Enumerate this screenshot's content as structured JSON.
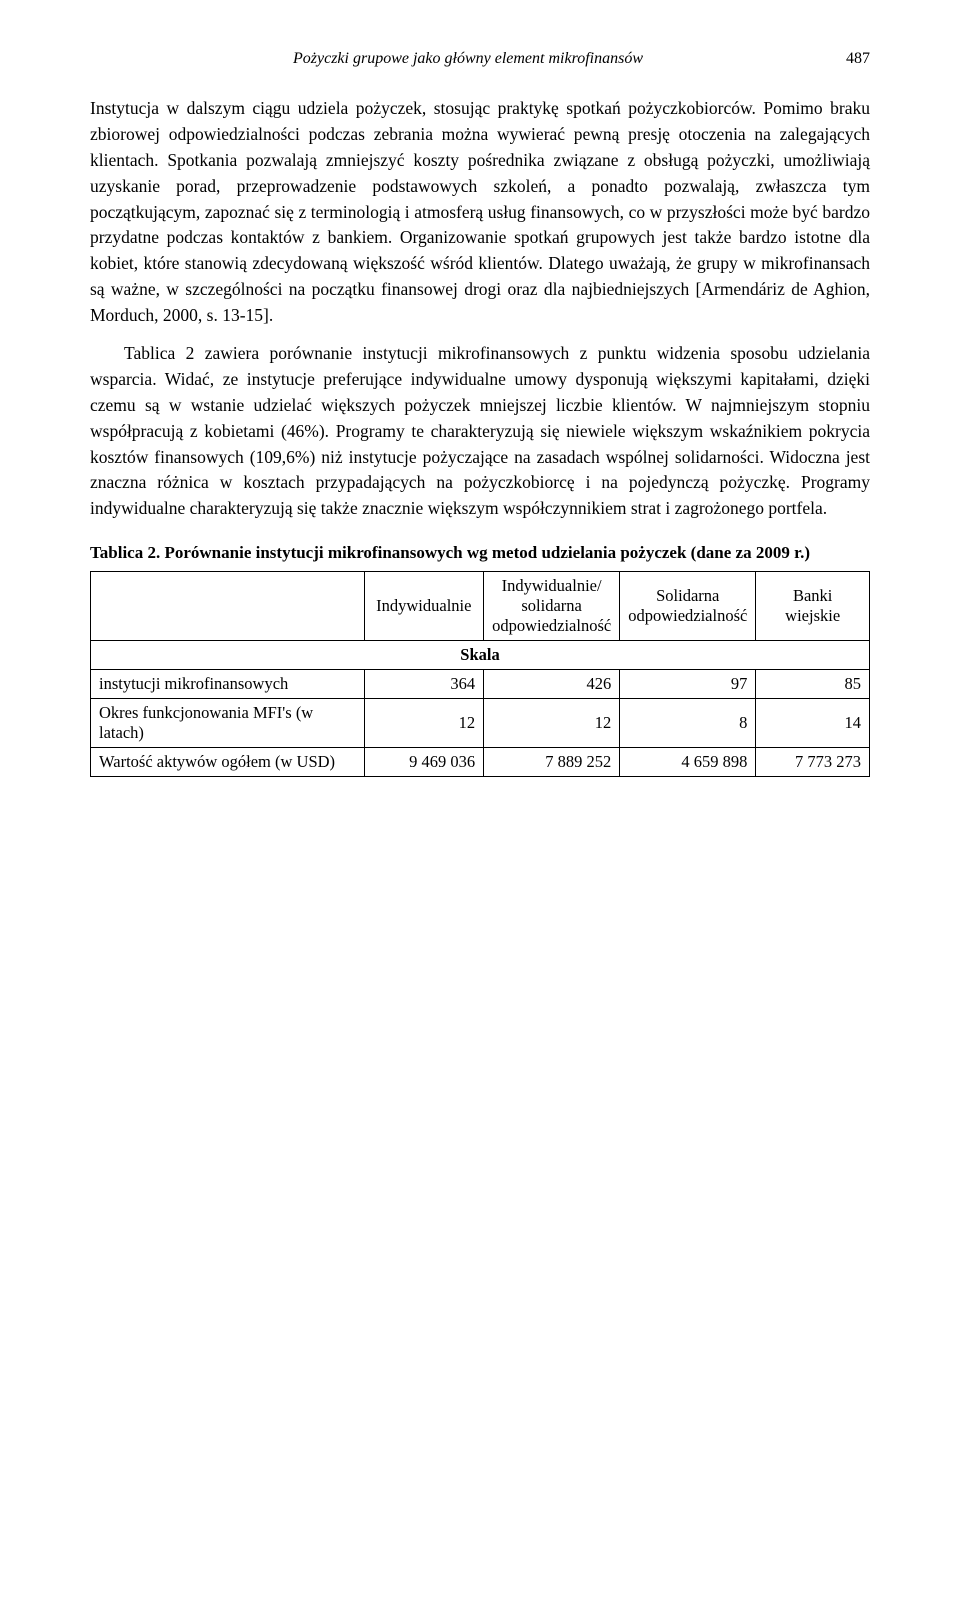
{
  "header": {
    "running_title": "Pożyczki grupowe jako główny element mikrofinansów",
    "page_number": "487"
  },
  "paragraphs": {
    "p1": "Instytucja w dalszym ciągu udziela pożyczek, stosując praktykę spotkań pożyczkobiorców. Pomimo braku zbiorowej odpowiedzialności podczas zebrania można wywierać pewną presję otoczenia na zalegających klientach. Spotkania pozwalają zmniejszyć koszty pośrednika związane z obsługą pożyczki, umożliwiają uzyskanie porad, przeprowadzenie podstawowych szkoleń, a ponadto pozwalają, zwłaszcza tym początkującym, zapoznać się z terminologią i atmosferą usług finansowych, co w przyszłości może być bardzo przydatne podczas kontaktów z bankiem. Organizowanie spotkań grupowych jest także bardzo istotne dla kobiet, które stanowią zdecydowaną większość wśród klientów. Dlatego uważają, że grupy w mikrofinansach są ważne, w szczególności na początku finansowej drogi oraz dla najbiedniejszych [Armendáriz de Aghion, Morduch, 2000, s. 13-15].",
    "p2": "Tablica 2 zawiera porównanie instytucji mikrofinansowych z punktu widzenia sposobu udzielania wsparcia. Widać, ze instytucje preferujące indywidualne umowy dysponują większymi kapitałami, dzięki czemu są w wstanie udzielać większych pożyczek mniejszej liczbie klientów. W najmniejszym stopniu współpracują z kobietami (46%). Programy te charakteryzują się niewiele większym wskaźnikiem pokrycia kosztów finansowych (109,6%) niż instytucje pożyczające na zasadach wspólnej solidarności. Widoczna jest znaczna różnica w kosztach przypadających na pożyczkobiorcę i na pojedynczą pożyczkę. Programy indywidualne charakteryzują się także znacznie większym współczynnikiem strat i zagrożonego portfela."
  },
  "table": {
    "caption": "Tablica 2. Porównanie instytucji mikrofinansowych wg metod udzielania pożyczek (dane za 2009 r.)",
    "columns": {
      "c1": "Indywidualnie",
      "c2": "Indywidualnie/ solidarna odpowiedzialność",
      "c3": "Solidarna odpowiedzialność",
      "c4": "Banki wiejskie"
    },
    "section_label": "Skala",
    "rows": [
      {
        "label": "instytucji mikrofinansowych",
        "v1": "364",
        "v2": "426",
        "v3": "97",
        "v4": "85"
      },
      {
        "label": "Okres funkcjonowania MFI's (w latach)",
        "v1": "12",
        "v2": "12",
        "v3": "8",
        "v4": "14"
      },
      {
        "label": "Wartość aktywów ogółem (w USD)",
        "v1": "9 469 036",
        "v2": "7 889 252",
        "v3": "4 659 898",
        "v4": "7 773 273"
      }
    ]
  }
}
